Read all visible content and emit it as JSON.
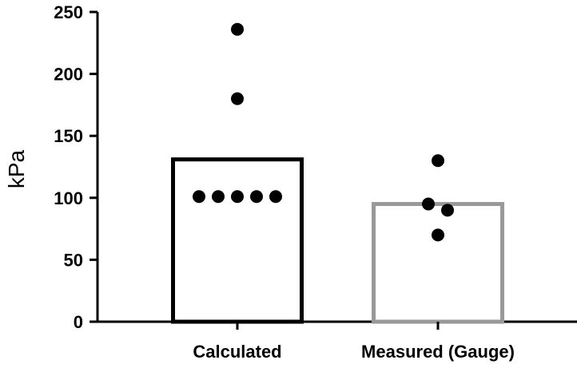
{
  "chart_data": {
    "type": "bar",
    "title": "",
    "xlabel": "",
    "ylabel": "kPa",
    "ylim": [
      0,
      250
    ],
    "yticks": [
      0,
      50,
      100,
      150,
      200,
      250
    ],
    "grid": false,
    "categories": [
      "Calculated",
      "Measured (Gauge)"
    ],
    "bars": [
      {
        "category": "Calculated",
        "value": 131,
        "color": "#000000"
      },
      {
        "category": "Measured (Gauge)",
        "value": 95,
        "color": "#999999"
      }
    ],
    "points": [
      {
        "category": "Calculated",
        "values": [
          236,
          180,
          101,
          101,
          101,
          101,
          101
        ]
      },
      {
        "category": "Measured (Gauge)",
        "values": [
          130,
          95,
          90,
          70
        ]
      }
    ],
    "point_color": "#000000"
  }
}
